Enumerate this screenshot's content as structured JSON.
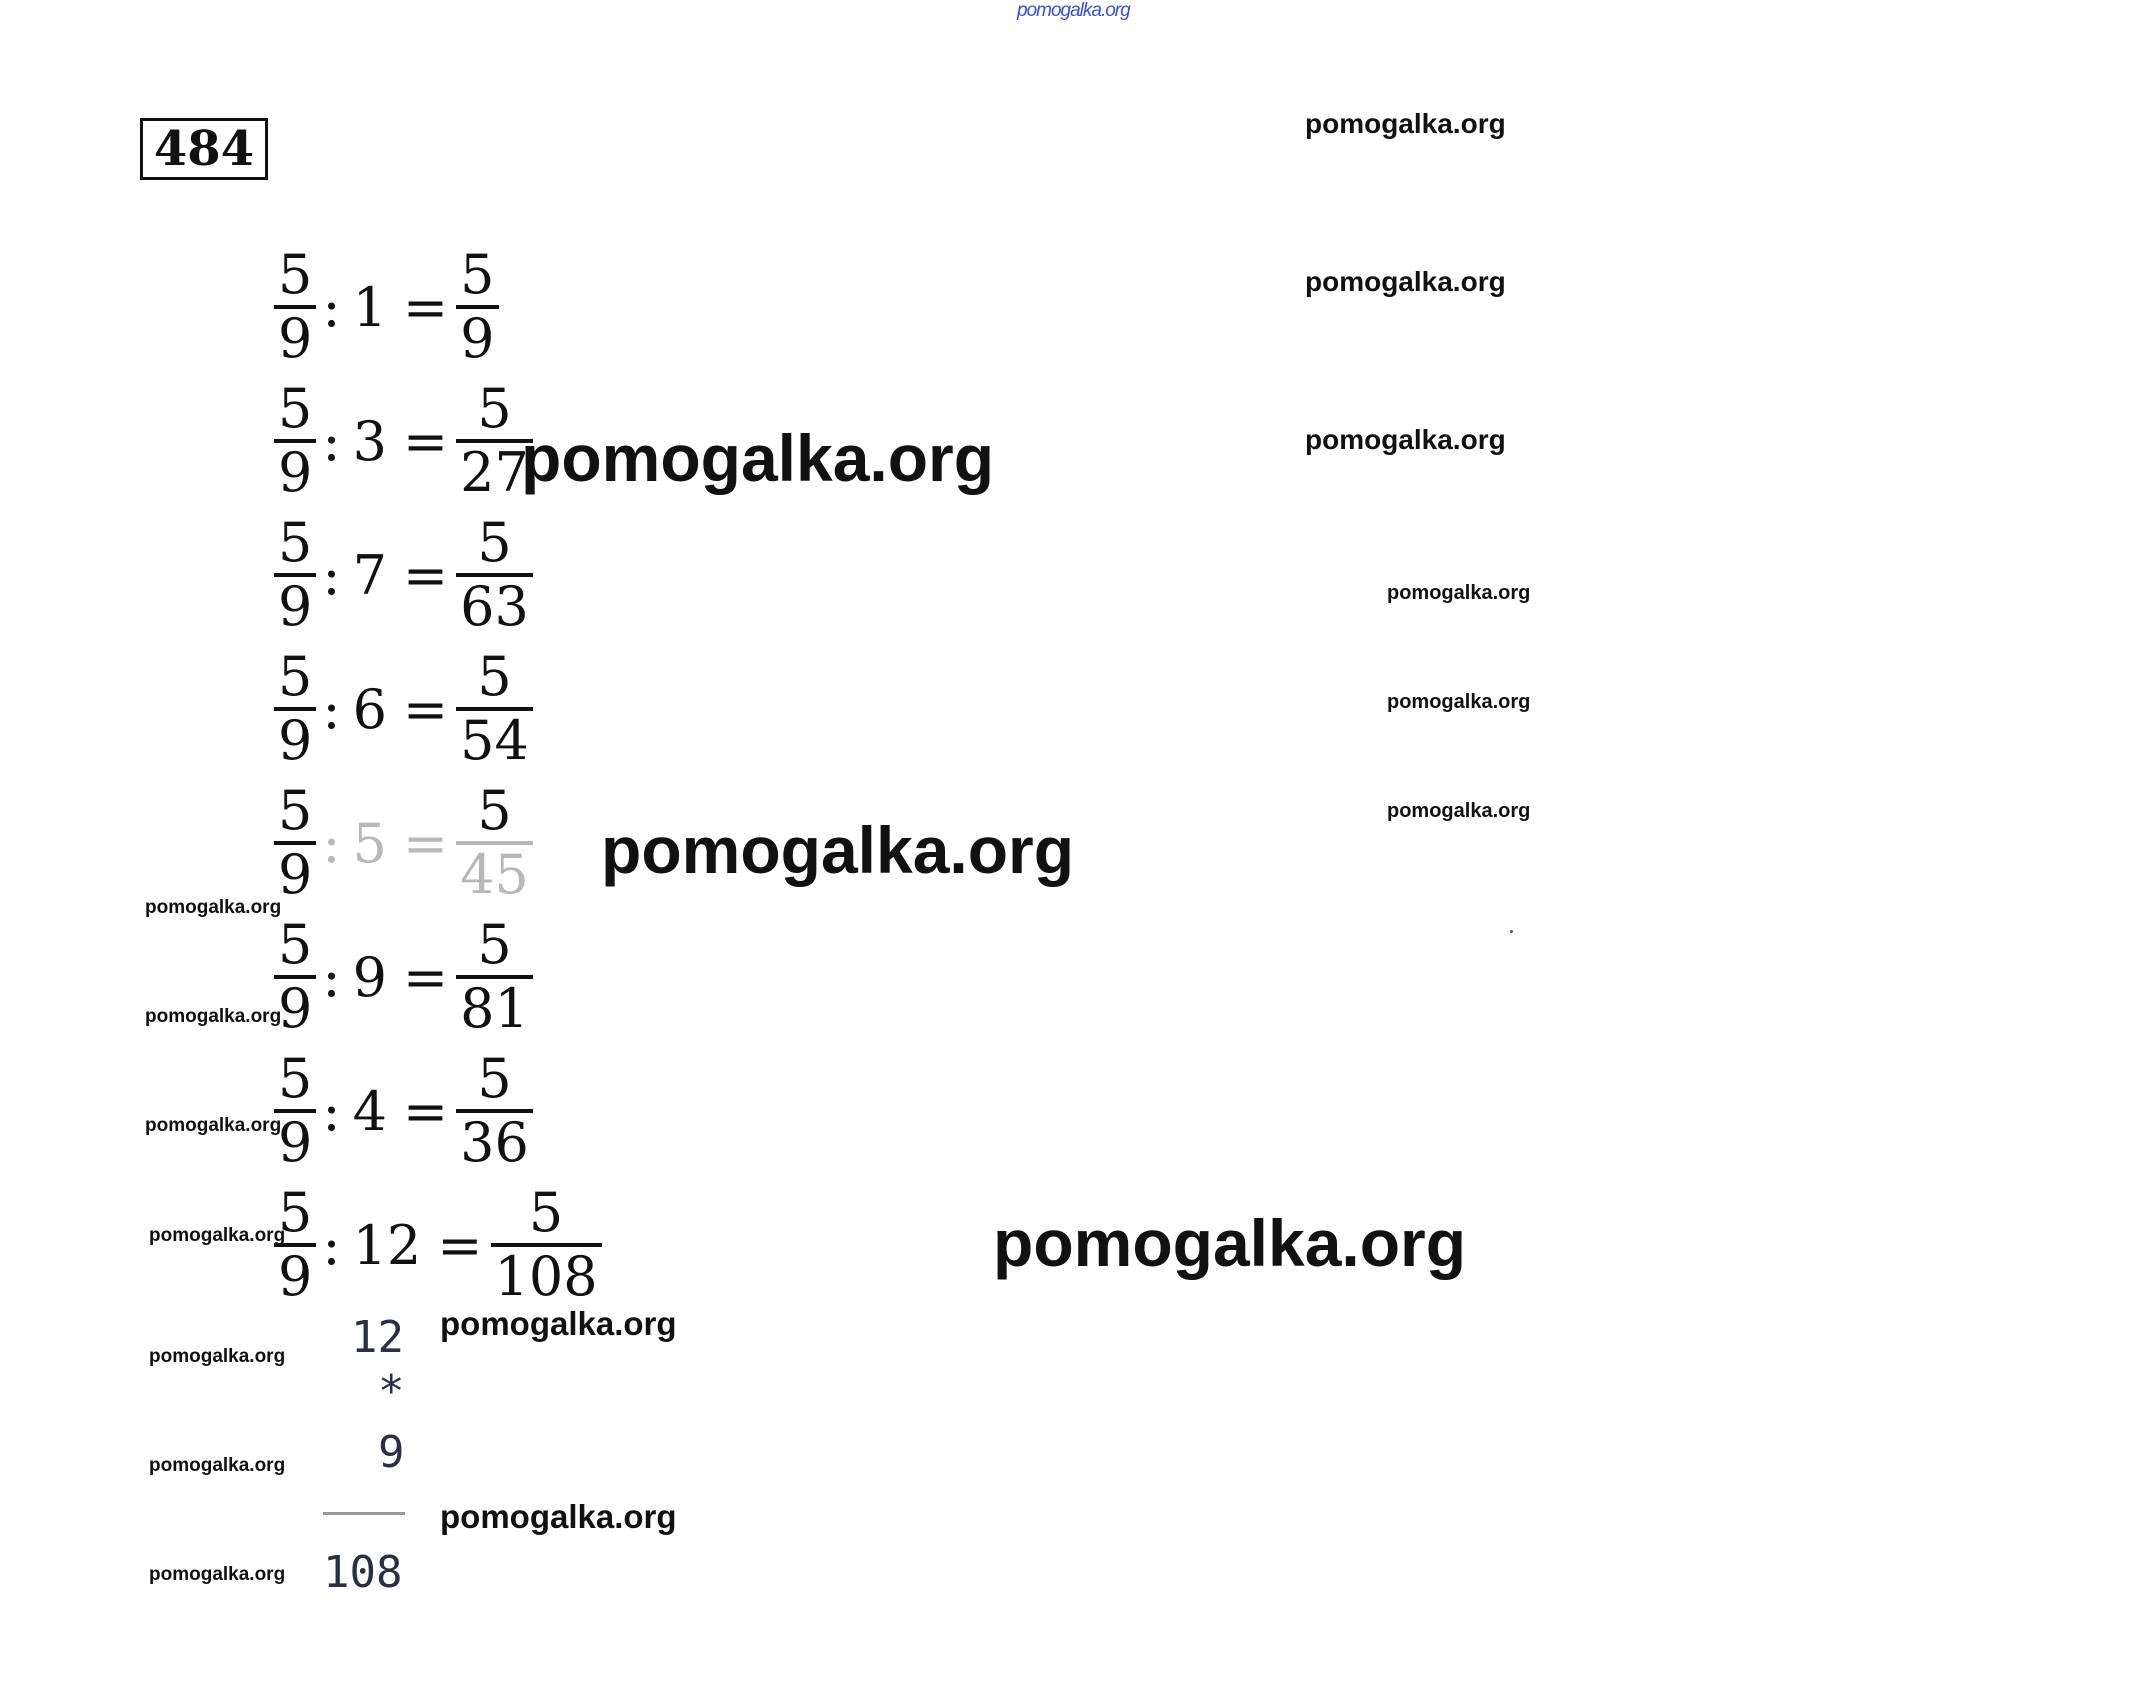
{
  "header_watermark": "pomogalka.org",
  "task_number": "484",
  "equations": [
    {
      "lhs_num": "5",
      "lhs_den": "9",
      "divisor": "1",
      "res_num": "5",
      "res_den": "9"
    },
    {
      "lhs_num": "5",
      "lhs_den": "9",
      "divisor": "3",
      "res_num": "5",
      "res_den": "27"
    },
    {
      "lhs_num": "5",
      "lhs_den": "9",
      "divisor": "7",
      "res_num": "5",
      "res_den": "63"
    },
    {
      "lhs_num": "5",
      "lhs_den": "9",
      "divisor": "6",
      "res_num": "5",
      "res_den": "54"
    },
    {
      "lhs_num": "5",
      "lhs_den": "9",
      "divisor": "5",
      "res_num": "5",
      "res_den": "45"
    },
    {
      "lhs_num": "5",
      "lhs_den": "9",
      "divisor": "9",
      "res_num": "5",
      "res_den": "81"
    },
    {
      "lhs_num": "5",
      "lhs_den": "9",
      "divisor": "4",
      "res_num": "5",
      "res_den": "36"
    },
    {
      "lhs_num": "5",
      "lhs_den": "9",
      "divisor": "12",
      "res_num": "5",
      "res_den": "108"
    }
  ],
  "operators": {
    "colon": ":",
    "equals": "="
  },
  "column_calc": {
    "top": "12",
    "op": "*",
    "bottom": "9",
    "result": "108"
  },
  "watermarks": {
    "right_1": "pomogalka.org",
    "right_2": "pomogalka.org",
    "right_3": "pomogalka.org",
    "small_1": "pomogalka.org",
    "small_2": "pomogalka.org",
    "small_3": "pomogalka.org",
    "big_1": "pomogalka.org",
    "big_2": "pomogalka.org",
    "big_3": "pomogalka.org",
    "mid_1": "pomogalka.org",
    "mid_2": "pomogalka.org",
    "left_1": "pomogalka.org",
    "left_2": "pomogalka.org",
    "left_3": "pomogalka.org",
    "left_4": "pomogalka.org",
    "left_5": "pomogalka.org",
    "left_6": "pomogalka.org",
    "left_7": "pomogalka.org"
  }
}
